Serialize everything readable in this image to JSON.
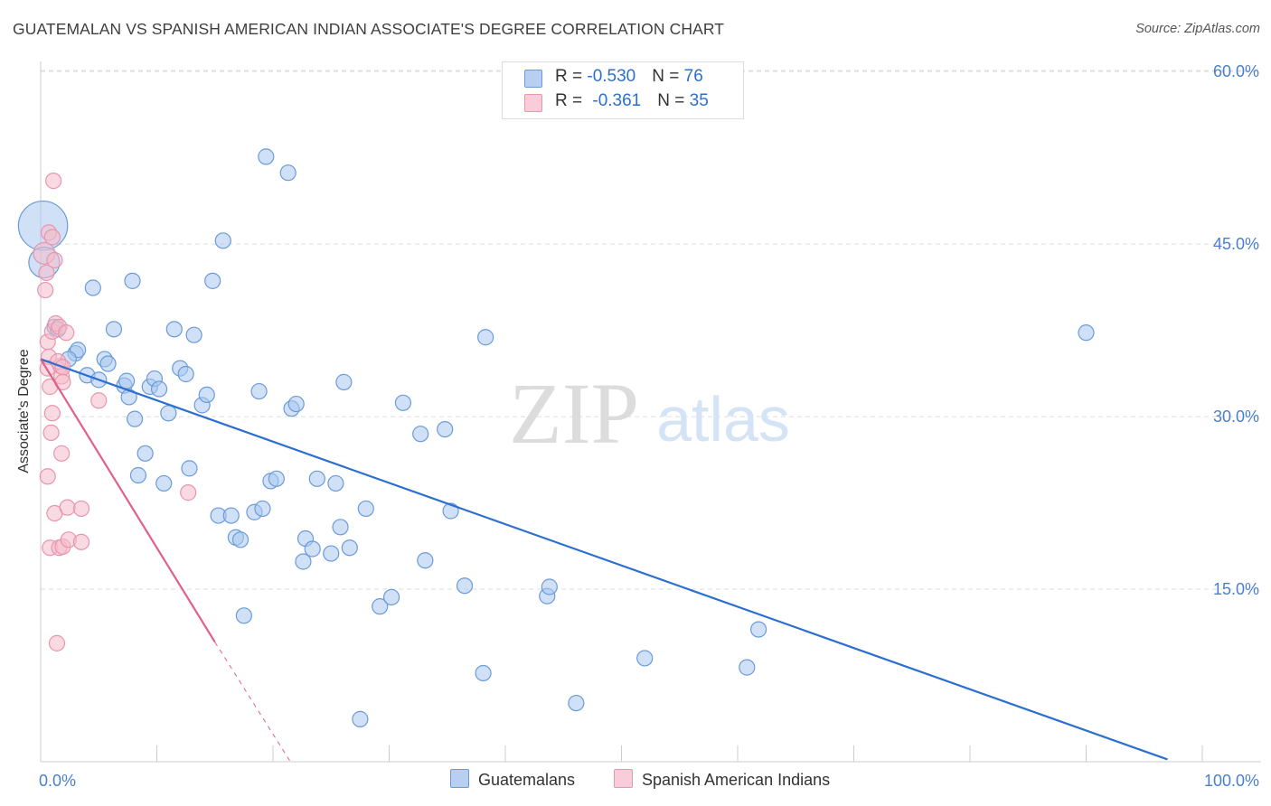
{
  "header": {
    "title": "GUATEMALAN VS SPANISH AMERICAN INDIAN ASSOCIATE'S DEGREE CORRELATION CHART",
    "source": "Source: ZipAtlas.com"
  },
  "watermark": {
    "zip": "ZIP",
    "atlas": "atlas"
  },
  "stats": {
    "guatemalans": {
      "r_label": "R = ",
      "r_value": "-0.530",
      "n_label": "N = ",
      "n_value": "76"
    },
    "spanish_american_indians": {
      "r_label": "R = ",
      "r_value": "-0.361",
      "n_label": "N = ",
      "n_value": "35"
    }
  },
  "legend": {
    "guatemalans": "Guatemalans",
    "spanish_american_indians": "Spanish American Indians"
  },
  "colors": {
    "blue_fill": "#a9c8f0",
    "blue_stroke": "#6a9bd8",
    "blue_line": "#2b6fd1",
    "pink_fill": "#f6bccb",
    "pink_stroke": "#e895ad",
    "pink_line": "#e0608a",
    "tick_text": "#4a7fd0",
    "grid": "#dddddd"
  },
  "chart_data": {
    "type": "scatter",
    "title": "GUATEMALAN VS SPANISH AMERICAN INDIAN ASSOCIATE'S DEGREE CORRELATION CHART",
    "xlabel": "",
    "ylabel": "Associate's Degree",
    "xlim": [
      0,
      100
    ],
    "ylim": [
      0,
      60
    ],
    "grid": true,
    "x_tick_labels": [
      "0.0%",
      "100.0%"
    ],
    "y_ticks": [
      15,
      30,
      45,
      60
    ],
    "y_tick_labels": [
      "15.0%",
      "30.0%",
      "45.0%",
      "60.0%"
    ],
    "legend_position": "bottom-center",
    "series": [
      {
        "name": "Guatemalans",
        "color": "#a9c8f0",
        "r": -0.53,
        "n": 76,
        "trend": {
          "x": [
            0,
            97
          ],
          "y": [
            35.0,
            0.2
          ]
        },
        "points": [
          [
            0.2,
            46.6,
            3.2
          ],
          [
            0.3,
            43.4,
            2.0
          ],
          [
            1.2,
            37.8,
            1
          ],
          [
            1.5,
            37.6,
            1
          ],
          [
            3.0,
            35.5,
            1
          ],
          [
            4.0,
            33.6,
            1
          ],
          [
            3.2,
            35.8,
            1
          ],
          [
            2.4,
            35.0,
            1
          ],
          [
            5.0,
            33.2,
            1
          ],
          [
            4.5,
            41.2,
            1
          ],
          [
            5.5,
            35.0,
            1
          ],
          [
            6.3,
            37.6,
            1
          ],
          [
            5.8,
            34.6,
            1
          ],
          [
            7.2,
            32.7,
            1
          ],
          [
            7.6,
            31.7,
            1
          ],
          [
            7.4,
            33.1,
            1
          ],
          [
            7.9,
            41.8,
            1
          ],
          [
            8.1,
            29.8,
            1
          ],
          [
            8.4,
            24.9,
            1
          ],
          [
            9.0,
            26.8,
            1
          ],
          [
            9.4,
            32.6,
            1
          ],
          [
            9.8,
            33.3,
            1
          ],
          [
            10.2,
            32.4,
            1
          ],
          [
            10.6,
            24.2,
            1
          ],
          [
            11.0,
            30.3,
            1
          ],
          [
            11.5,
            37.6,
            1
          ],
          [
            12.0,
            34.2,
            1
          ],
          [
            12.5,
            33.7,
            1
          ],
          [
            12.8,
            25.5,
            1
          ],
          [
            13.2,
            37.1,
            1
          ],
          [
            13.9,
            31.0,
            1
          ],
          [
            14.3,
            31.9,
            1
          ],
          [
            14.8,
            41.8,
            1
          ],
          [
            15.3,
            21.4,
            1
          ],
          [
            15.7,
            45.3,
            1
          ],
          [
            16.4,
            21.4,
            1
          ],
          [
            16.8,
            19.5,
            1
          ],
          [
            17.2,
            19.3,
            1
          ],
          [
            17.5,
            12.7,
            1
          ],
          [
            18.4,
            21.7,
            1
          ],
          [
            18.8,
            32.2,
            1
          ],
          [
            19.1,
            22.0,
            1
          ],
          [
            19.4,
            52.6,
            1
          ],
          [
            19.8,
            24.4,
            1
          ],
          [
            20.3,
            24.6,
            1
          ],
          [
            21.3,
            51.2,
            1
          ],
          [
            21.6,
            30.7,
            1
          ],
          [
            22.0,
            31.1,
            1
          ],
          [
            22.6,
            17.4,
            1
          ],
          [
            22.8,
            19.4,
            1
          ],
          [
            23.4,
            18.5,
            1
          ],
          [
            23.8,
            24.6,
            1
          ],
          [
            25.0,
            18.1,
            1
          ],
          [
            25.4,
            24.2,
            1
          ],
          [
            25.8,
            20.4,
            1
          ],
          [
            26.1,
            33.0,
            1
          ],
          [
            26.6,
            18.6,
            1
          ],
          [
            27.5,
            3.7,
            1
          ],
          [
            28.0,
            22.0,
            1
          ],
          [
            29.2,
            13.5,
            1
          ],
          [
            30.2,
            14.3,
            1
          ],
          [
            31.2,
            31.2,
            1
          ],
          [
            32.7,
            28.5,
            1
          ],
          [
            33.1,
            17.5,
            1
          ],
          [
            34.8,
            28.9,
            1
          ],
          [
            35.3,
            21.8,
            1
          ],
          [
            36.5,
            15.3,
            1
          ],
          [
            38.1,
            7.7,
            1
          ],
          [
            38.3,
            36.9,
            1
          ],
          [
            43.6,
            14.4,
            1
          ],
          [
            43.8,
            15.2,
            1
          ],
          [
            46.1,
            5.1,
            1
          ],
          [
            52.0,
            9.0,
            1
          ],
          [
            60.8,
            8.2,
            1
          ],
          [
            61.8,
            11.5,
            1
          ],
          [
            90.0,
            37.3,
            1
          ]
        ]
      },
      {
        "name": "Spanish American Indians",
        "color": "#f6bccb",
        "r": -0.361,
        "n": 35,
        "trend": {
          "x": [
            0,
            15
          ],
          "y": [
            35.0,
            10.4
          ]
        },
        "trend_extension": {
          "x": [
            15,
            21.5
          ],
          "y": [
            10.4,
            0
          ]
        },
        "points": [
          [
            0.3,
            44.2,
            1.4
          ],
          [
            0.5,
            42.5,
            1
          ],
          [
            0.4,
            41.0,
            1
          ],
          [
            0.6,
            36.5,
            1
          ],
          [
            0.7,
            35.2,
            1
          ],
          [
            0.6,
            34.2,
            1
          ],
          [
            0.8,
            32.6,
            1
          ],
          [
            0.9,
            28.6,
            1
          ],
          [
            0.6,
            24.8,
            1
          ],
          [
            1.1,
            50.5,
            1
          ],
          [
            0.7,
            46.0,
            1
          ],
          [
            1.0,
            45.6,
            1
          ],
          [
            1.2,
            43.6,
            1
          ],
          [
            1.0,
            37.4,
            1
          ],
          [
            1.3,
            38.1,
            1
          ],
          [
            1.6,
            37.8,
            1
          ],
          [
            1.7,
            34.4,
            1
          ],
          [
            1.5,
            34.8,
            1
          ],
          [
            1.8,
            33.5,
            1
          ],
          [
            1.9,
            34.3,
            1
          ],
          [
            1.9,
            33.0,
            1
          ],
          [
            2.2,
            37.3,
            1
          ],
          [
            1.0,
            30.3,
            1
          ],
          [
            1.8,
            26.8,
            1
          ],
          [
            1.2,
            21.6,
            1
          ],
          [
            2.3,
            22.1,
            1
          ],
          [
            0.8,
            18.6,
            1
          ],
          [
            1.6,
            18.6,
            1
          ],
          [
            1.9,
            18.7,
            1
          ],
          [
            2.4,
            19.3,
            1
          ],
          [
            3.5,
            19.1,
            1
          ],
          [
            3.5,
            22.0,
            1
          ],
          [
            5.0,
            31.4,
            1
          ],
          [
            12.7,
            23.4,
            1
          ],
          [
            1.4,
            10.3,
            1
          ]
        ]
      }
    ]
  }
}
